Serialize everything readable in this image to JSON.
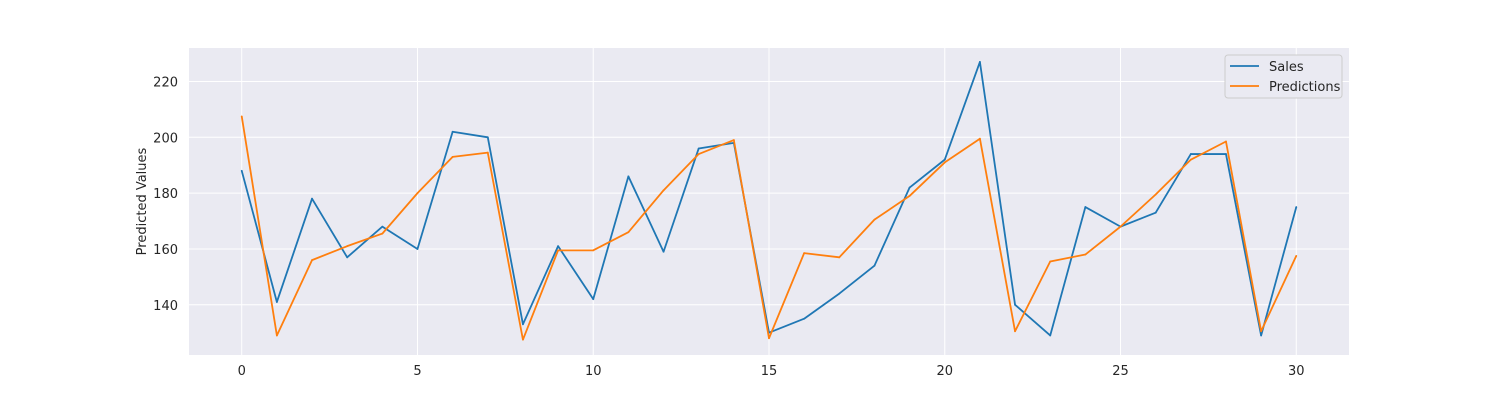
{
  "chart_data": {
    "type": "line",
    "title": "",
    "xlabel": "",
    "ylabel": "Predicted Values",
    "x": [
      0,
      1,
      2,
      3,
      4,
      5,
      6,
      7,
      8,
      9,
      10,
      11,
      12,
      13,
      14,
      15,
      16,
      17,
      18,
      19,
      20,
      21,
      22,
      23,
      24,
      25,
      26,
      27,
      28,
      29,
      30
    ],
    "xlim": [
      -1.5,
      31.5
    ],
    "ylim": [
      122,
      232
    ],
    "xticks": [
      0,
      5,
      10,
      15,
      20,
      25,
      30
    ],
    "yticks": [
      140,
      160,
      180,
      200,
      220
    ],
    "grid": true,
    "legend": "top-right",
    "series": [
      {
        "name": "Sales",
        "color": "#1f77b4",
        "values": [
          188,
          141,
          178,
          157,
          168,
          160,
          202,
          200,
          133,
          161,
          142,
          186,
          159,
          196,
          198,
          130,
          135,
          144,
          154,
          182,
          192,
          227,
          140,
          129,
          175,
          168,
          173,
          194,
          194,
          129,
          175
        ]
      },
      {
        "name": "Predictions",
        "color": "#ff7f0e",
        "values": [
          207.5,
          129,
          156,
          161,
          165.5,
          180,
          193,
          194.5,
          127.5,
          159.5,
          159.5,
          166,
          181,
          194,
          199,
          128,
          158.5,
          157,
          170.5,
          179,
          191,
          199.5,
          130.5,
          155.5,
          158,
          168,
          179.5,
          192,
          198.5,
          130.5,
          157.5
        ]
      }
    ],
    "colors": {
      "plot_background": "#eaeaf2",
      "grid": "#ffffff",
      "text": "#262626"
    }
  }
}
